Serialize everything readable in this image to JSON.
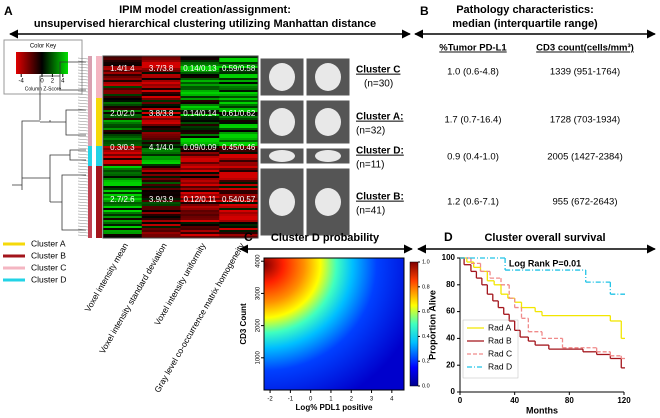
{
  "panel_a": {
    "letter": "A",
    "title": "IPIM model creation/assignment:",
    "subtitle": "unsupervised hierarchical clustering utilizing Manhattan distance",
    "color_key": {
      "title": "Color Key",
      "lim": [
        -5,
        5
      ],
      "ticks": [
        -4,
        0,
        2,
        4
      ],
      "label": "Column Z-Score"
    },
    "features": [
      "Voxel intensity mean",
      "Voxel intensity standard deviation",
      "Voxel intensity uniformity",
      "Gray level co-occurrence matrix homogeneity"
    ],
    "clusters": [
      {
        "name": "Cluster C",
        "n": "(n=30)",
        "color": "#f4b6c2",
        "cells": [
          "1.4/1.4",
          "3.7/3.8",
          "0.14/0.13",
          "0.59/0.58"
        ]
      },
      {
        "name": "Cluster A:",
        "n": "(n=32)",
        "color": "#f5d90a",
        "cells": [
          "2.0/2.0",
          "3.8/3.8",
          "0.14/0.14",
          "0.61/0.62"
        ]
      },
      {
        "name": "Cluster D:",
        "n": "(n=11)",
        "color": "#22d3e6",
        "cells": [
          "0.3/0.3",
          "4.1/4.0",
          "0.09/0.09",
          "0.45/0.46"
        ]
      },
      {
        "name": "Cluster B:",
        "n": "(n=41)",
        "color": "#a3141b",
        "cells": [
          "2.7/2.6",
          "3.9/3.9",
          "0.12/0.11",
          "0.54/0.57"
        ]
      }
    ],
    "legend": [
      {
        "name": "Cluster A",
        "color": "#f5d90a"
      },
      {
        "name": "Cluster B",
        "color": "#a3141b"
      },
      {
        "name": "Cluster C",
        "color": "#f4b6c2"
      },
      {
        "name": "Cluster D",
        "color": "#22d3e6"
      }
    ]
  },
  "panel_b": {
    "letter": "B",
    "title": "Pathology characteristics:",
    "subtitle": "median (interquartile range)",
    "columns": [
      "%Tumor PD-L1",
      "CD3 count(cells/mm³)"
    ],
    "rows": [
      [
        "1.0 (0.6-4.8)",
        "1339 (951-1764)"
      ],
      [
        "1.7 (0.7-16.4)",
        "1728 (703-1934)"
      ],
      [
        "0.9 (0.4-1.0)",
        "2005 (1427-2384)"
      ],
      [
        "1.2 (0.6-7.1)",
        "955 (672-2643)"
      ]
    ]
  },
  "chart_data": [
    {
      "type": "heatmap",
      "letter": "C",
      "title": "Cluster D probability",
      "xlabel": "Log% PDL1 positive",
      "ylabel": "CD3 Count",
      "xlim": [
        -2.3,
        4.6
      ],
      "xticks": [
        -2,
        -1,
        0,
        1,
        2,
        3,
        4
      ],
      "ylim": [
        0,
        4100
      ],
      "yticks": [
        1000,
        2000,
        3000,
        4000
      ],
      "clim": [
        0,
        1
      ],
      "cticks": [
        {
          "value": 0,
          "label": "0.0"
        },
        {
          "value": 0.2,
          "label": "0.2"
        },
        {
          "value": 0.4,
          "label": "0.4"
        },
        {
          "value": 0.6,
          "label": "0.6"
        },
        {
          "value": 0.8,
          "label": "0.8"
        },
        {
          "value": 1,
          "label": "1.0"
        }
      ]
    },
    {
      "type": "step",
      "letter": "D",
      "title": "Cluster overall survival",
      "xlabel": "Months",
      "ylabel": "Proportion Alive",
      "annotation": "Log Rank P=0.01",
      "xlim": [
        0,
        120
      ],
      "xticks": [
        0,
        40,
        80,
        120
      ],
      "ylim": [
        0,
        100
      ],
      "yticks": [
        0,
        20,
        40,
        60,
        80,
        100
      ],
      "series": [
        {
          "name": "Rad A",
          "color": "#f2e600",
          "dash": "solid",
          "x": [
            0,
            5,
            10,
            15,
            20,
            25,
            30,
            35,
            40,
            45,
            55,
            60,
            110,
            118,
            120
          ],
          "values": [
            100,
            97,
            93,
            90,
            83,
            80,
            73,
            70,
            67,
            63,
            60,
            57,
            53,
            40,
            40
          ]
        },
        {
          "name": "Rad B",
          "color": "#a3141b",
          "dash": "solid",
          "x": [
            0,
            3,
            8,
            12,
            16,
            20,
            24,
            28,
            32,
            36,
            40,
            44,
            50,
            55,
            65,
            90,
            100,
            110,
            118,
            120
          ],
          "values": [
            100,
            95,
            90,
            85,
            80,
            73,
            68,
            63,
            58,
            53,
            46,
            41,
            38,
            35,
            32,
            30,
            28,
            25,
            18,
            18
          ]
        },
        {
          "name": "Rad C",
          "color": "#f08a8a",
          "dash": "dashed",
          "x": [
            0,
            8,
            15,
            22,
            30,
            36,
            40,
            45,
            50,
            60,
            75,
            100,
            110,
            118,
            120
          ],
          "values": [
            100,
            96,
            90,
            85,
            80,
            70,
            63,
            55,
            45,
            40,
            33,
            30,
            27,
            25,
            25
          ]
        },
        {
          "name": "Rad D",
          "color": "#22c3e6",
          "dash": "dashdot",
          "x": [
            0,
            33,
            92,
            110,
            120
          ],
          "values": [
            100,
            91,
            82,
            73,
            73
          ]
        }
      ]
    }
  ]
}
